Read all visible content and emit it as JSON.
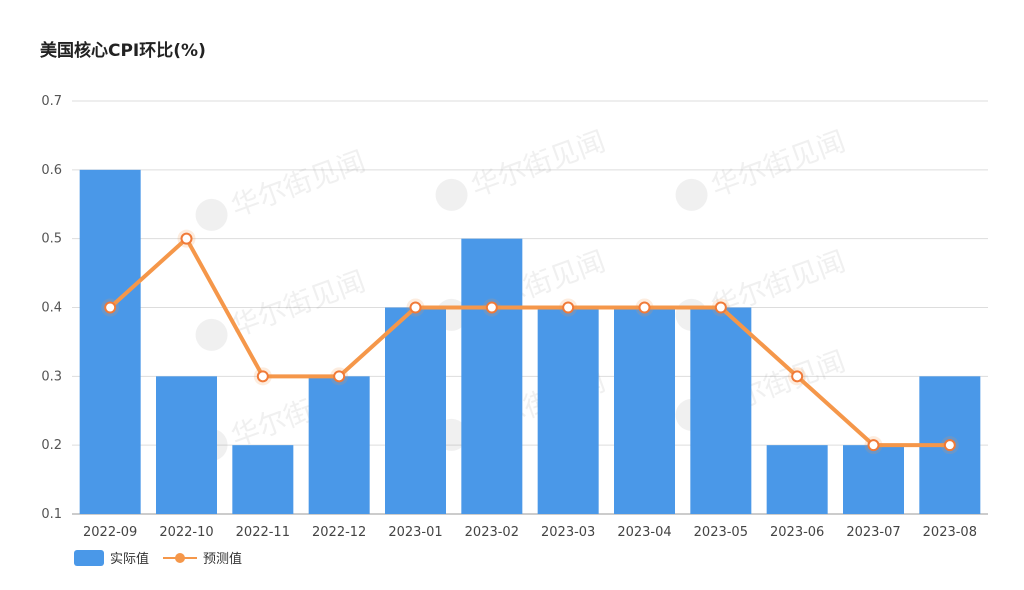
{
  "chart_data": {
    "type": "bar",
    "title": "美国核心CPI环比(%)",
    "categories": [
      "2022-09",
      "2022-10",
      "2022-11",
      "2022-12",
      "2023-01",
      "2023-02",
      "2023-03",
      "2023-04",
      "2023-05",
      "2023-06",
      "2023-07",
      "2023-08"
    ],
    "series": [
      {
        "name": "实际值",
        "type": "bar",
        "color": "#4a98e8",
        "values": [
          0.6,
          0.3,
          0.2,
          0.3,
          0.4,
          0.5,
          0.4,
          0.4,
          0.4,
          0.2,
          0.2,
          0.3
        ]
      },
      {
        "name": "预测值",
        "type": "line",
        "color": "#f5974a",
        "values": [
          0.4,
          0.5,
          0.3,
          0.3,
          0.4,
          0.4,
          0.4,
          0.4,
          0.4,
          0.3,
          0.2,
          0.2
        ]
      }
    ],
    "ylim": [
      0.1,
      0.7
    ],
    "yticks": [
      "0.1",
      "0.2",
      "0.3",
      "0.4",
      "0.5",
      "0.6",
      "0.7"
    ],
    "grid": true,
    "legend": "bottom-left"
  },
  "watermark": "华尔街见闻"
}
